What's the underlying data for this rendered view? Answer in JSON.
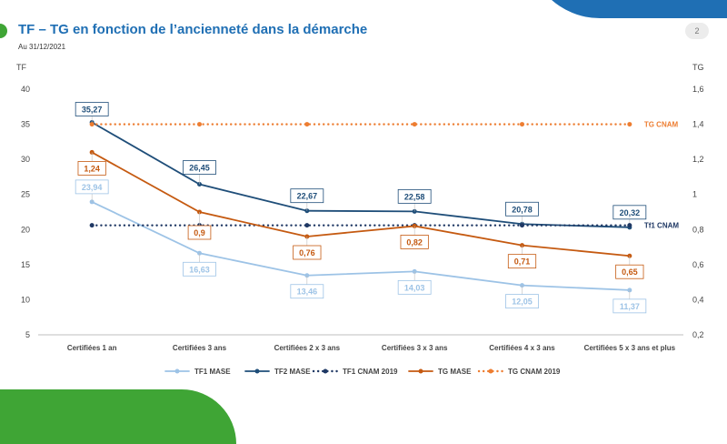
{
  "header": {
    "title": "TF – TG en fonction de l’ancienneté dans la démarche",
    "subtitle": "Au 31/12/2021",
    "page_number": "2"
  },
  "colors": {
    "brand_blue": "#1f6fb4",
    "brand_green": "#3fa535",
    "tf1": "#9dc3e6",
    "tf2": "#1f4e79",
    "tf1_cnam": "#1f3864",
    "tg": "#c55a11",
    "tg_cnam": "#ed7d31"
  },
  "chart_data": {
    "type": "line",
    "categories": [
      "Certifiées 1 an",
      "Certifiées 3 ans",
      "Certifiées 2 x 3 ans",
      "Certifiées 3 x 3 ans",
      "Certifiées 4 x 3 ans",
      "Certifiées 5 x 3 ans et plus"
    ],
    "ylabel": "TF",
    "y2label": "TG",
    "ylim": [
      5,
      40
    ],
    "y2lim": [
      0.2,
      1.6
    ],
    "yticks": [
      "5",
      "10",
      "15",
      "20",
      "25",
      "30",
      "35",
      "40"
    ],
    "y2ticks": [
      "0,2",
      "0,4",
      "0,6",
      "0,8",
      "1",
      "1,2",
      "1,4",
      "1,6"
    ],
    "series": [
      {
        "name": "TF1 MASE",
        "axis": "left",
        "style": "solid",
        "color": "#9dc3e6",
        "values": [
          23.94,
          16.63,
          13.46,
          14.03,
          12.05,
          11.37
        ],
        "labels": [
          "23,94",
          "16,63",
          "13,46",
          "14,03",
          "12,05",
          "11,37"
        ]
      },
      {
        "name": "TF2 MASE",
        "axis": "left",
        "style": "solid",
        "color": "#1f4e79",
        "values": [
          35.27,
          26.45,
          22.67,
          22.58,
          20.78,
          20.32
        ],
        "labels": [
          "35,27",
          "26,45",
          "22,67",
          "22,58",
          "20,78",
          "20,32"
        ]
      },
      {
        "name": "TF1 CNAM 2019",
        "axis": "left",
        "style": "dotted",
        "color": "#1f3864",
        "values": [
          20.6,
          20.6,
          20.6,
          20.6,
          20.6,
          20.6
        ],
        "end_label": "Tf1 CNAM"
      },
      {
        "name": "TG MASE",
        "axis": "right",
        "style": "solid",
        "color": "#c55a11",
        "values": [
          1.24,
          0.9,
          0.76,
          0.82,
          0.71,
          0.65
        ],
        "labels": [
          "1,24",
          "0,9",
          "0,76",
          "0,82",
          "0,71",
          "0,65"
        ]
      },
      {
        "name": "TG CNAM 2019",
        "axis": "right",
        "style": "dotted",
        "color": "#ed7d31",
        "values": [
          1.4,
          1.4,
          1.4,
          1.4,
          1.4,
          1.4
        ],
        "end_label": "TG CNAM"
      }
    ],
    "legend_position": "bottom",
    "grid": false
  }
}
